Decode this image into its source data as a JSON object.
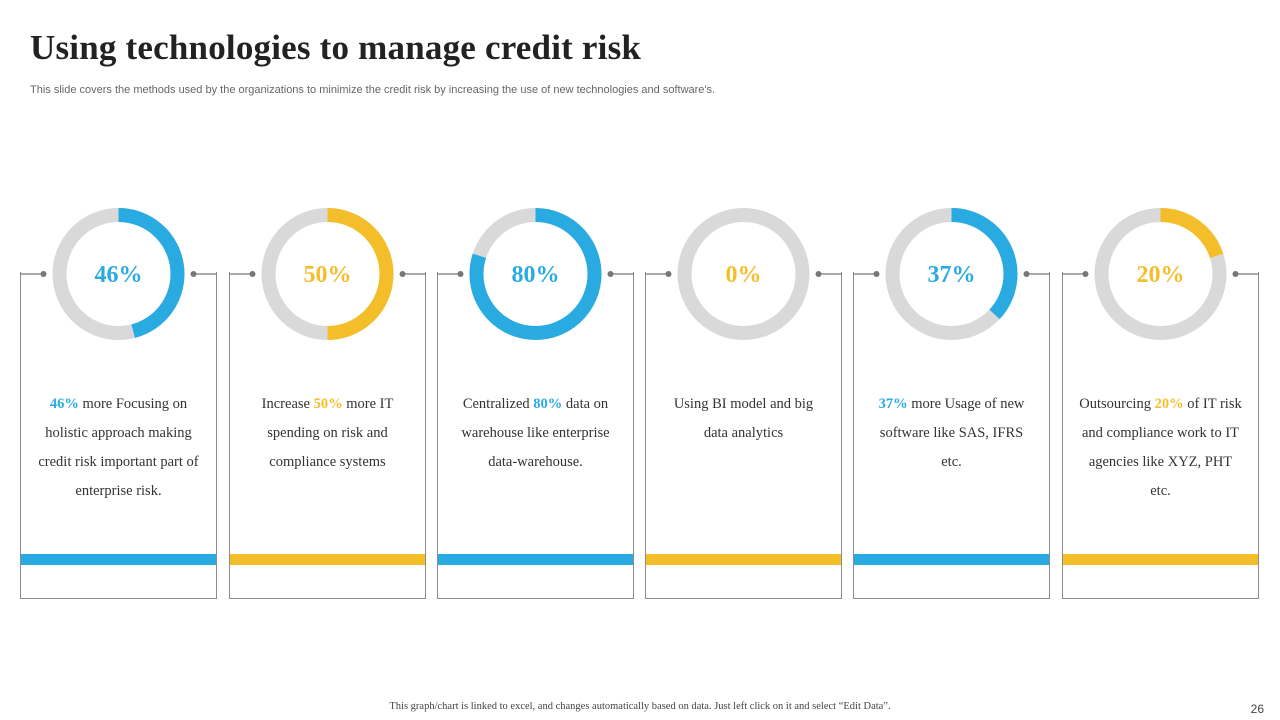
{
  "header": {
    "title": "Using technologies to manage credit risk",
    "subtitle": "This slide covers the methods used by the organizations to minimize the credit risk by increasing the use of new technologies and software's."
  },
  "colors": {
    "blue": "#29abe2",
    "yellow": "#f4be2b",
    "track": "#d9d9d9"
  },
  "chart_data": {
    "type": "pie",
    "variant": "donut",
    "series": [
      {
        "name": "Card 1",
        "value": 46,
        "label": "46%",
        "color": "#29abe2"
      },
      {
        "name": "Card 2",
        "value": 50,
        "label": "50%",
        "color": "#f4be2b"
      },
      {
        "name": "Card 3",
        "value": 80,
        "label": "80%",
        "color": "#29abe2"
      },
      {
        "name": "Card 4",
        "value": 0,
        "label": "0%",
        "color": "#f4be2b"
      },
      {
        "name": "Card 5",
        "value": 37,
        "label": "37%",
        "color": "#29abe2"
      },
      {
        "name": "Card 6",
        "value": 20,
        "label": "20%",
        "color": "#f4be2b"
      }
    ]
  },
  "cards": [
    {
      "pct": "46%",
      "pre": "",
      "post": " more Focusing on holistic approach making credit risk important part of enterprise risk.",
      "color": "#29abe2"
    },
    {
      "pct": "50%",
      "pre": "Increase ",
      "post": " more IT spending on risk and compliance systems",
      "color": "#f4be2b"
    },
    {
      "pct": "80%",
      "pre": "Centralized ",
      "post": " data on warehouse like enterprise data-warehouse.",
      "color": "#29abe2"
    },
    {
      "pct": "",
      "pre": "Using BI model and big data analytics",
      "post": "",
      "color": "#f4be2b"
    },
    {
      "pct": "37%",
      "pre": "",
      "post": " more Usage of new software like SAS, IFRS etc.",
      "color": "#29abe2"
    },
    {
      "pct": "20%",
      "pre": "Outsourcing ",
      "post": " of IT risk and compliance work to IT agencies like XYZ, PHT etc.",
      "color": "#f4be2b"
    }
  ],
  "footer": {
    "note": "This graph/chart is linked to excel,  and changes automatically based on data. Just left click on it and select “Edit Data”.",
    "page": "26"
  }
}
